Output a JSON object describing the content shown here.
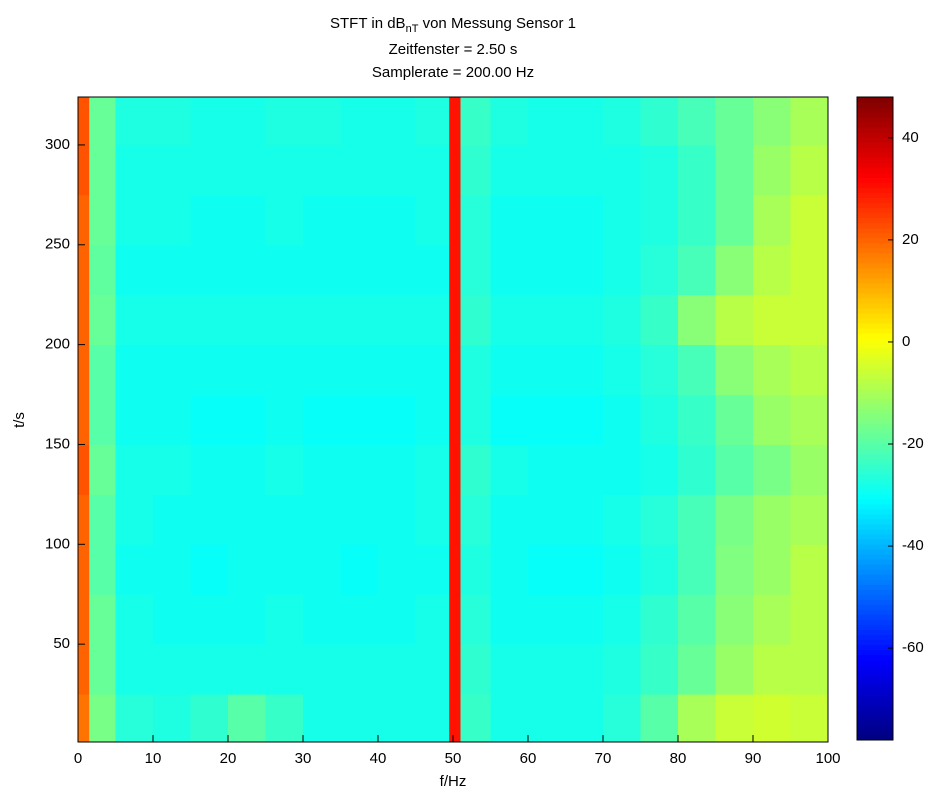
{
  "chart_data": {
    "type": "heatmap",
    "title_parts": [
      "STFT in dB",
      "nT",
      " von Messung Sensor 1"
    ],
    "subtitles": [
      "Zeitfenster = 2.50 s",
      "Samplerate = 200.00 Hz"
    ],
    "x_label": "f/Hz",
    "y_label": "t/s",
    "xlim": [
      0,
      100
    ],
    "ylim": [
      1,
      324
    ],
    "xticks": [
      0,
      10,
      20,
      30,
      40,
      50,
      60,
      70,
      80,
      90,
      100
    ],
    "yticks": [
      50,
      100,
      150,
      200,
      250,
      300
    ],
    "colormap": "jet",
    "clim": [
      -78,
      48
    ],
    "cticks": [
      -60,
      -40,
      -20,
      0,
      20,
      40
    ],
    "xedges": [
      0,
      1.5,
      5,
      10,
      15,
      20,
      25,
      30,
      35,
      40,
      45,
      49.5,
      51,
      55,
      60,
      65,
      70,
      75,
      80,
      85,
      90,
      95,
      100
    ],
    "yedges": [
      1,
      25,
      50,
      75,
      100,
      125,
      150,
      175,
      200,
      225,
      250,
      275,
      300,
      324
    ],
    "z": [
      [
        18,
        -16,
        -26,
        -27,
        -25,
        -20,
        -24,
        -28,
        -28,
        -28,
        -28,
        30,
        -24,
        -28,
        -28,
        -28,
        -26,
        -20,
        -10,
        -6,
        -5,
        -6
      ],
      [
        20,
        -18,
        -28,
        -28,
        -28,
        -28,
        -28,
        -28,
        -28,
        -28,
        -28,
        30,
        -25,
        -28,
        -28,
        -28,
        -27,
        -24,
        -18,
        -12,
        -8,
        -8
      ],
      [
        20,
        -18,
        -28,
        -29,
        -29,
        -29,
        -28,
        -29,
        -29,
        -29,
        -28,
        30,
        -26,
        -29,
        -29,
        -29,
        -28,
        -25,
        -20,
        -14,
        -10,
        -8
      ],
      [
        20,
        -20,
        -29,
        -29,
        -30,
        -29,
        -29,
        -29,
        -30,
        -29,
        -29,
        30,
        -27,
        -29,
        -30,
        -30,
        -29,
        -27,
        -22,
        -15,
        -12,
        -8
      ],
      [
        20,
        -20,
        -28,
        -29,
        -29,
        -29,
        -29,
        -29,
        -29,
        -29,
        -28,
        30,
        -26,
        -29,
        -29,
        -29,
        -28,
        -26,
        -22,
        -16,
        -12,
        -10
      ],
      [
        22,
        -18,
        -28,
        -28,
        -29,
        -29,
        -28,
        -29,
        -29,
        -29,
        -28,
        30,
        -25,
        -28,
        -29,
        -29,
        -29,
        -28,
        -25,
        -20,
        -16,
        -12
      ],
      [
        20,
        -20,
        -29,
        -29,
        -30,
        -30,
        -29,
        -30,
        -30,
        -30,
        -29,
        30,
        -27,
        -30,
        -30,
        -30,
        -29,
        -27,
        -24,
        -18,
        -12,
        -10
      ],
      [
        20,
        -20,
        -29,
        -29,
        -29,
        -29,
        -29,
        -29,
        -29,
        -29,
        -29,
        30,
        -27,
        -29,
        -29,
        -29,
        -28,
        -26,
        -22,
        -14,
        -10,
        -8
      ],
      [
        20,
        -18,
        -28,
        -28,
        -28,
        -28,
        -28,
        -28,
        -28,
        -28,
        -28,
        30,
        -25,
        -28,
        -28,
        -28,
        -27,
        -24,
        -14,
        -8,
        -6,
        -6
      ],
      [
        20,
        -19,
        -29,
        -29,
        -29,
        -29,
        -29,
        -29,
        -29,
        -29,
        -29,
        30,
        -26,
        -29,
        -29,
        -29,
        -28,
        -26,
        -22,
        -14,
        -8,
        -6
      ],
      [
        20,
        -18,
        -28,
        -28,
        -29,
        -29,
        -28,
        -29,
        -29,
        -29,
        -28,
        30,
        -26,
        -29,
        -29,
        -29,
        -28,
        -27,
        -24,
        -18,
        -10,
        -6
      ],
      [
        22,
        -18,
        -28,
        -28,
        -28,
        -28,
        -28,
        -28,
        -28,
        -28,
        -28,
        30,
        -25,
        -28,
        -28,
        -28,
        -28,
        -27,
        -24,
        -18,
        -12,
        -8
      ],
      [
        22,
        -18,
        -27,
        -27,
        -28,
        -28,
        -27,
        -27,
        -28,
        -28,
        -27,
        30,
        -24,
        -27,
        -28,
        -28,
        -27,
        -25,
        -22,
        -18,
        -14,
        -10
      ]
    ]
  }
}
